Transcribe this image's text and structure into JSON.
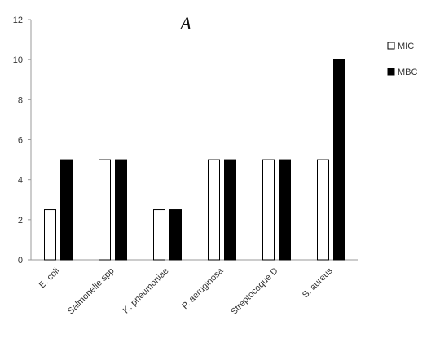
{
  "chart_data": {
    "type": "bar",
    "title": "A",
    "categories": [
      "E. coli",
      "Salmonelle spp",
      "K. pneumoniae",
      "P. aeruginosa",
      "Streptocoque  D",
      "S. aureus"
    ],
    "series": [
      {
        "name": "MIC",
        "values": [
          2.5,
          5,
          2.5,
          5,
          5,
          5
        ],
        "color": "#ffffff"
      },
      {
        "name": "MBC",
        "values": [
          5,
          5,
          2.5,
          5,
          5,
          10
        ],
        "color": "#000000"
      }
    ],
    "ylim": [
      0,
      12
    ],
    "yticks": [
      "0",
      "2",
      "4",
      "6",
      "8",
      "10",
      "12"
    ],
    "legend_position": "right",
    "grid": false
  }
}
